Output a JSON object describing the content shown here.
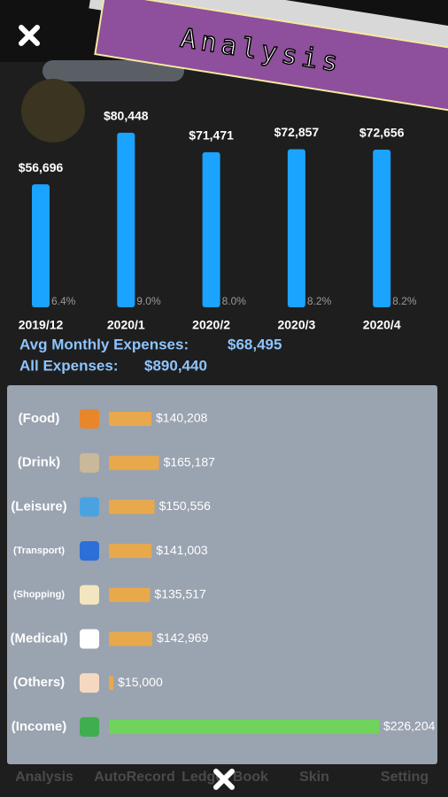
{
  "header": {
    "title": "Analysis"
  },
  "chart_data": {
    "type": "bar",
    "categories": [
      "2019/12",
      "2020/1",
      "2020/2",
      "2020/3",
      "2020/4"
    ],
    "values": [
      56696,
      80448,
      71471,
      72857,
      72656
    ],
    "value_labels": [
      "$56,696",
      "$80,448",
      "$71,471",
      "$72,857",
      "$72,656"
    ],
    "percent_labels": [
      "6.4%",
      "9.0%",
      "8.0%",
      "8.2%",
      "8.2%"
    ],
    "color": "#1aa3ff",
    "ylim": [
      0,
      90000
    ]
  },
  "summary": {
    "avg_label": "Avg Monthly Expenses:",
    "avg_value": 68495,
    "avg_value_label": "$68,495",
    "all_label": "All Expenses:",
    "all_value": 890440,
    "all_value_label": "$890,440"
  },
  "categories_panel": {
    "expense_color": "#e8a84c",
    "income_color": "#6fd35c",
    "rows": [
      {
        "name": "(Food)",
        "value": 140208,
        "value_label": "$140,208"
      },
      {
        "name": "(Drink)",
        "value": 165187,
        "value_label": "$165,187"
      },
      {
        "name": "(Leisure)",
        "value": 150556,
        "value_label": "$150,556"
      },
      {
        "name": "(Transport)",
        "value": 141003,
        "value_label": "$141,003"
      },
      {
        "name": "(Shopping)",
        "value": 135517,
        "value_label": "$135,517"
      },
      {
        "name": "(Medical)",
        "value": 142969,
        "value_label": "$142,969"
      },
      {
        "name": "(Others)",
        "value": 15000,
        "value_label": "$15,000"
      },
      {
        "name": "(Income)",
        "value": 226204,
        "value_label": "$226,204"
      }
    ]
  },
  "tabs": [
    "Analysis",
    "AutoRecord",
    "Ledger Book",
    "Skin",
    "Setting"
  ]
}
